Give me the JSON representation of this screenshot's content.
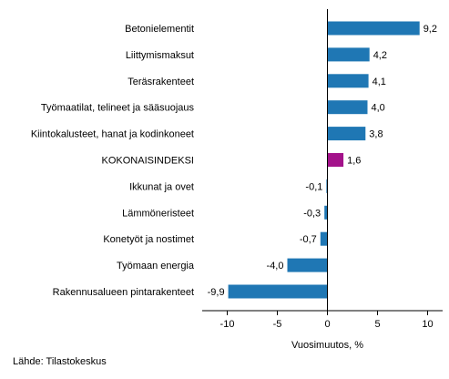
{
  "chart_data": {
    "type": "bar",
    "orientation": "horizontal",
    "categories": [
      "Betonielementit",
      "Liittymismaksut",
      "Teräsrakenteet",
      "Työmaatilat, telineet ja sääsuojaus",
      "Kiintokalusteet, hanat ja kodinkoneet",
      "KOKONAISINDEKSI",
      "Ikkunat ja ovet",
      "Lämmöneristeet",
      "Konetyöt ja nostimet",
      "Työmaan energia",
      "Rakennusalueen pintarakenteet"
    ],
    "values": [
      9.2,
      4.2,
      4.1,
      4.0,
      3.8,
      1.6,
      -0.1,
      -0.3,
      -0.7,
      -4.0,
      -9.9
    ],
    "value_labels": [
      "9,2",
      "4,2",
      "4,1",
      "4,0",
      "3,8",
      "1,6",
      "-0,1",
      "-0,3",
      "-0,7",
      "-4,0",
      "-9,9"
    ],
    "highlight_index": 5,
    "colors": {
      "default": "#1f77b4",
      "highlight": "#a3128a",
      "axis": "#000000",
      "grid": "#d9d9d9"
    },
    "xlabel": "Vuosimuutos, %",
    "xlim": [
      -12.5,
      11.5
    ],
    "xticks": [
      -10,
      -5,
      0,
      5,
      10
    ],
    "xtick_labels": [
      "-10",
      "-5",
      "0",
      "5",
      "10"
    ],
    "grid": false
  },
  "source": "Lähde: Tilastokeskus"
}
